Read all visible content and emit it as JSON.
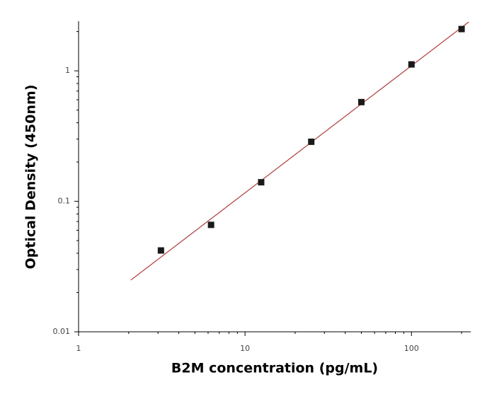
{
  "chart_data": {
    "type": "scatter",
    "xlabel": "B2M concentration (pg/mL)",
    "ylabel": "Optical Density (450nm)",
    "xscale": "log",
    "yscale": "log",
    "xlim": [
      1,
      227
    ],
    "ylim": [
      0.01,
      2.4
    ],
    "xticks": [
      1,
      10,
      100
    ],
    "yticks": [
      0.01,
      0.1,
      1
    ],
    "xminorticks": [
      2,
      3,
      4,
      5,
      6,
      7,
      8,
      9,
      20,
      30,
      40,
      50,
      60,
      70,
      80,
      90,
      200
    ],
    "yminorticks": [
      0.02,
      0.03,
      0.04,
      0.05,
      0.06,
      0.07,
      0.08,
      0.09,
      0.2,
      0.3,
      0.4,
      0.5,
      0.6,
      0.7,
      0.8,
      0.9,
      2
    ],
    "points": {
      "color": "#1a1a1a",
      "x": [
        3.125,
        6.25,
        12.5,
        25,
        50,
        100,
        200
      ],
      "y": [
        0.042,
        0.066,
        0.14,
        0.286,
        0.576,
        1.12,
        2.09
      ]
    },
    "fit": {
      "color": "#b03a3a",
      "x": [
        2.06,
        221
      ],
      "y": [
        0.0249,
        2.37
      ]
    }
  }
}
